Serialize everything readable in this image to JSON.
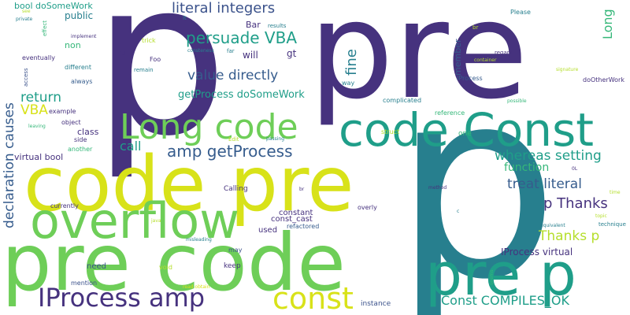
{
  "palette": {
    "dark_purple": "#46327e",
    "indigo": "#3b528b",
    "blue": "#365c8d",
    "teal": "#277f8e",
    "teal_light": "#1f9e89",
    "green": "#35b779",
    "green_light": "#6ece58",
    "lime": "#b5de2b",
    "yellow": "#d8e219",
    "background": "#ffffff"
  },
  "words": [
    {
      "text": "p",
      "color": "#46327e"
    },
    {
      "text": "pre",
      "color": "#46327e"
    },
    {
      "text": "p",
      "color": "#277f8e"
    },
    {
      "text": "code pre",
      "color": "#d8e219"
    },
    {
      "text": "pre code",
      "color": "#6ece58"
    },
    {
      "text": "overflow",
      "color": "#6ece58"
    },
    {
      "text": "code Const",
      "color": "#1f9e89"
    },
    {
      "text": "Long code",
      "color": "#6ece58"
    },
    {
      "text": "pre p",
      "color": "#1f9e89"
    },
    {
      "text": "IProcess amp",
      "color": "#46327e"
    },
    {
      "text": "const",
      "color": "#d8e219"
    },
    {
      "text": "literal integers",
      "color": "#3b528b"
    },
    {
      "text": "persuade VBA",
      "color": "#1f9e89"
    },
    {
      "text": "value directly",
      "color": "#365c8d"
    },
    {
      "text": "amp getProcess",
      "color": "#365c8d"
    },
    {
      "text": "whereas setting",
      "color": "#1f9e89"
    },
    {
      "text": "treat literal",
      "color": "#365c8d"
    },
    {
      "text": "p Thanks",
      "color": "#46327e"
    },
    {
      "text": "Thanks p",
      "color": "#b5de2b"
    },
    {
      "text": "Const COMPILES_OK",
      "color": "#1f9e89"
    },
    {
      "text": "declaration causes",
      "color": "#365c8d"
    },
    {
      "text": "return",
      "color": "#1f9e89"
    },
    {
      "text": "VBA",
      "color": "#d8e219"
    },
    {
      "text": "call",
      "color": "#1f9e89"
    },
    {
      "text": "function",
      "color": "#35b779"
    },
    {
      "text": "fine",
      "color": "#277f8e"
    },
    {
      "text": "Long",
      "color": "#35b779"
    },
    {
      "text": "getProcess doSomeWork",
      "color": "#1f9e89"
    },
    {
      "text": "IProcess virtual",
      "color": "#46327e"
    },
    {
      "text": "bool doSomeWork",
      "color": "#1f9e89"
    },
    {
      "text": "public",
      "color": "#277f8e"
    },
    {
      "text": "non",
      "color": "#35b779"
    },
    {
      "text": "will",
      "color": "#46327e"
    },
    {
      "text": "gt",
      "color": "#46327e"
    },
    {
      "text": "Bar",
      "color": "#46327e"
    },
    {
      "text": "class",
      "color": "#46327e"
    },
    {
      "text": "virtual bool",
      "color": "#46327e"
    },
    {
      "text": "member",
      "color": "#365c8d"
    },
    {
      "text": "const_cast",
      "color": "#46327e"
    },
    {
      "text": "constant",
      "color": "#46327e"
    },
    {
      "text": "used",
      "color": "#46327e"
    },
    {
      "text": "refactored",
      "color": "#365c8d"
    },
    {
      "text": "need",
      "color": "#3b528b"
    },
    {
      "text": "keep",
      "color": "#46327e"
    },
    {
      "text": "may",
      "color": "#3b528b"
    },
    {
      "text": "void",
      "color": "#b5de2b"
    },
    {
      "text": "mention",
      "color": "#3b528b"
    },
    {
      "text": "instance",
      "color": "#3b528b"
    },
    {
      "text": "struct",
      "color": "#b5de2b"
    },
    {
      "text": "overly",
      "color": "#46327e"
    },
    {
      "text": "Calling",
      "color": "#46327e"
    },
    {
      "text": "one",
      "color": "#35b779"
    },
    {
      "text": "way",
      "color": "#277f8e"
    },
    {
      "text": "IProcess",
      "color": "#365c8d"
    },
    {
      "text": "doOtherWork",
      "color": "#46327e"
    },
    {
      "text": "complicated",
      "color": "#277f8e"
    },
    {
      "text": "reference",
      "color": "#35b779"
    },
    {
      "text": "eventually",
      "color": "#46327e"
    },
    {
      "text": "different",
      "color": "#277f8e"
    },
    {
      "text": "always",
      "color": "#365c8d"
    },
    {
      "text": "example",
      "color": "#46327e"
    },
    {
      "text": "object",
      "color": "#46327e"
    },
    {
      "text": "side",
      "color": "#46327e"
    },
    {
      "text": "another",
      "color": "#35b779"
    },
    {
      "text": "currently",
      "color": "#46327e"
    },
    {
      "text": "Foo",
      "color": "#46327e"
    },
    {
      "text": "remain",
      "color": "#277f8e"
    },
    {
      "text": "trick",
      "color": "#b5de2b"
    },
    {
      "text": "full",
      "color": "#46327e"
    },
    {
      "text": "lt",
      "color": "#277f8e"
    },
    {
      "text": "results",
      "color": "#277f8e"
    },
    {
      "text": "far",
      "color": "#277f8e"
    },
    {
      "text": "consteness",
      "color": "#277f8e"
    },
    {
      "text": "Please",
      "color": "#277f8e"
    },
    {
      "text": "regard",
      "color": "#46327e"
    },
    {
      "text": "container",
      "color": "#b5de2b"
    },
    {
      "text": "signature",
      "color": "#b5de2b"
    },
    {
      "text": "possible",
      "color": "#35b779"
    },
    {
      "text": "br",
      "color": "#b5de2b"
    },
    {
      "text": "see",
      "color": "#b5de2b"
    },
    {
      "text": "private",
      "color": "#277f8e"
    },
    {
      "text": "implement",
      "color": "#46327e"
    },
    {
      "text": "effect",
      "color": "#35b779"
    },
    {
      "text": "access",
      "color": "#3b528b"
    },
    {
      "text": "leaving",
      "color": "#35b779"
    },
    {
      "text": "misleading",
      "color": "#277f8e"
    },
    {
      "text": "passing",
      "color": "#277f8e"
    },
    {
      "text": "Edit",
      "color": "#b5de2b"
    },
    {
      "text": "method",
      "color": "#46327e"
    },
    {
      "text": "time",
      "color": "#b5de2b"
    },
    {
      "text": "topic",
      "color": "#b5de2b"
    },
    {
      "text": "equivalent",
      "color": "#277f8e"
    },
    {
      "text": "technique",
      "color": "#277f8e"
    },
    {
      "text": "seems",
      "color": "#35b779"
    },
    {
      "text": "read obtain",
      "color": "#d8e219"
    },
    {
      "text": "br",
      "color": "#46327e"
    },
    {
      "text": "java",
      "color": "#b5de2b"
    },
    {
      "text": "0L",
      "color": "#46327e"
    },
    {
      "text": "c",
      "color": "#277f8e"
    }
  ]
}
